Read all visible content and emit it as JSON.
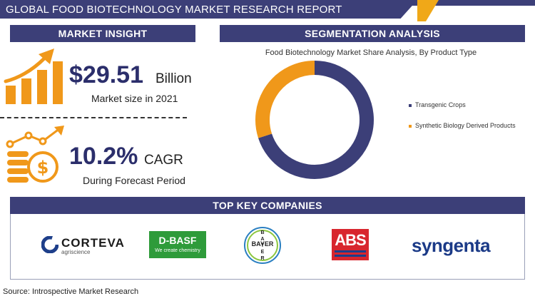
{
  "header": {
    "title": "GLOBAL FOOD BIOTECHNOLOGY MARKET RESEARCH REPORT"
  },
  "market_insight": {
    "heading": "MARKET INSIGHT",
    "market_size_value": "$29.51",
    "market_size_unit": "Billion",
    "market_size_label": "Market size in 2021",
    "cagr_value": "10.2%",
    "cagr_unit": "CAGR",
    "cagr_label": "During Forecast Period",
    "icons": [
      "growth-chart-icon",
      "dollar-coins-icon"
    ]
  },
  "segmentation": {
    "heading": "SEGMENTATION ANALYSIS"
  },
  "chart_data": {
    "type": "pie",
    "title": "Food Biotechnology Market Share Analysis, By Product Type",
    "donut": true,
    "categories": [
      "Transgenic Crops",
      "Synthetic Biology Derived Products"
    ],
    "values": [
      70,
      30
    ],
    "colors": [
      "#3c3f78",
      "#f0981a"
    ],
    "legend_position": "right"
  },
  "companies": {
    "heading": "TOP KEY COMPANIES",
    "corteva_name": "CORTEVA",
    "corteva_tagline": "agriscience",
    "basf_name": "D-BASF",
    "basf_tagline": "We create chemistry",
    "bayer_top": "BAYER",
    "bayer_side": "B A Y E R",
    "abs_name": "ABS",
    "syngenta_name": "syngenta"
  },
  "footer": {
    "source": "Source: Introspective Market Research"
  },
  "colors": {
    "navy": "#3c3f78",
    "orange": "#f0981a",
    "gold": "#f0a818",
    "basf_green": "#2e9b3a",
    "abs_red": "#d8262e",
    "syngenta_blue": "#1b3a87"
  }
}
